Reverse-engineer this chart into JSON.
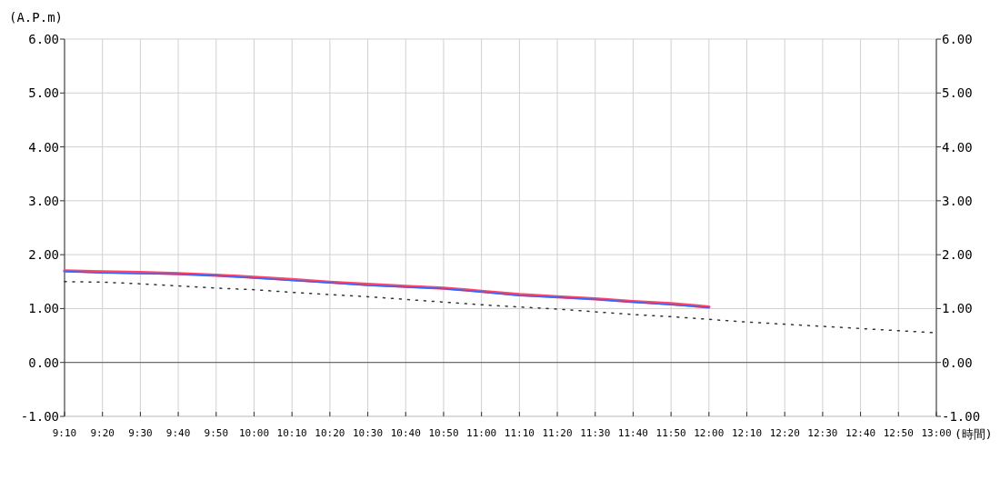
{
  "chart_data": {
    "type": "line",
    "ylabel": "(A.P.m)",
    "xlabel": "(時間)",
    "categories": [
      "9:10",
      "9:20",
      "9:30",
      "9:40",
      "9:50",
      "10:00",
      "10:10",
      "10:20",
      "10:30",
      "10:40",
      "10:50",
      "11:00",
      "11:10",
      "11:20",
      "11:30",
      "11:40",
      "11:50",
      "12:00",
      "12:10",
      "12:20",
      "12:30",
      "12:40",
      "12:50",
      "13:00"
    ],
    "series": [
      {
        "color": "#ff4466",
        "values": [
          1.7,
          1.68,
          1.67,
          1.65,
          1.62,
          1.58,
          1.54,
          1.49,
          1.45,
          1.41,
          1.38,
          1.32,
          1.26,
          1.22,
          1.18,
          1.13,
          1.09,
          1.03,
          null,
          null,
          null,
          null,
          null,
          null
        ]
      },
      {
        "color": "#3366ff",
        "values": [
          1.69,
          1.66,
          1.65,
          1.64,
          1.61,
          1.57,
          1.52,
          1.48,
          1.43,
          1.4,
          1.37,
          1.31,
          1.24,
          1.21,
          1.17,
          1.12,
          1.07,
          1.02,
          null,
          null,
          null,
          null,
          null,
          null
        ]
      },
      {
        "color": "#333333",
        "line_style": "dotted",
        "values": [
          1.5,
          1.49,
          1.46,
          1.42,
          1.38,
          1.35,
          1.3,
          1.26,
          1.22,
          1.17,
          1.12,
          1.07,
          1.03,
          0.99,
          0.94,
          0.89,
          0.85,
          0.8,
          0.75,
          0.71,
          0.67,
          0.63,
          0.59,
          0.55
        ]
      }
    ],
    "ylim": [
      -1,
      6
    ],
    "yticks": [
      {
        "value": -1,
        "label": "-1.00"
      },
      {
        "value": 0,
        "label": "0.00"
      },
      {
        "value": 1,
        "label": "1.00"
      },
      {
        "value": 2,
        "label": "2.00"
      },
      {
        "value": 3,
        "label": "3.00"
      },
      {
        "value": 4,
        "label": "4.00"
      },
      {
        "value": 5,
        "label": "5.00"
      },
      {
        "value": 6,
        "label": "6.00"
      }
    ],
    "y2lim": [
      -1,
      6
    ],
    "y2ticks": [
      {
        "value": -1,
        "label": "-1.00"
      },
      {
        "value": 0,
        "label": "0.00"
      },
      {
        "value": 1,
        "label": "1.00"
      },
      {
        "value": 2,
        "label": "2.00"
      },
      {
        "value": 3,
        "label": "3.00"
      },
      {
        "value": 4,
        "label": "4.00"
      },
      {
        "value": 5,
        "label": "5.00"
      },
      {
        "value": 6,
        "label": "6.00"
      }
    ],
    "ref_lines": [
      {
        "axis": "y",
        "value": 0,
        "color": "#555555"
      }
    ],
    "grid": true,
    "marker": "none"
  }
}
